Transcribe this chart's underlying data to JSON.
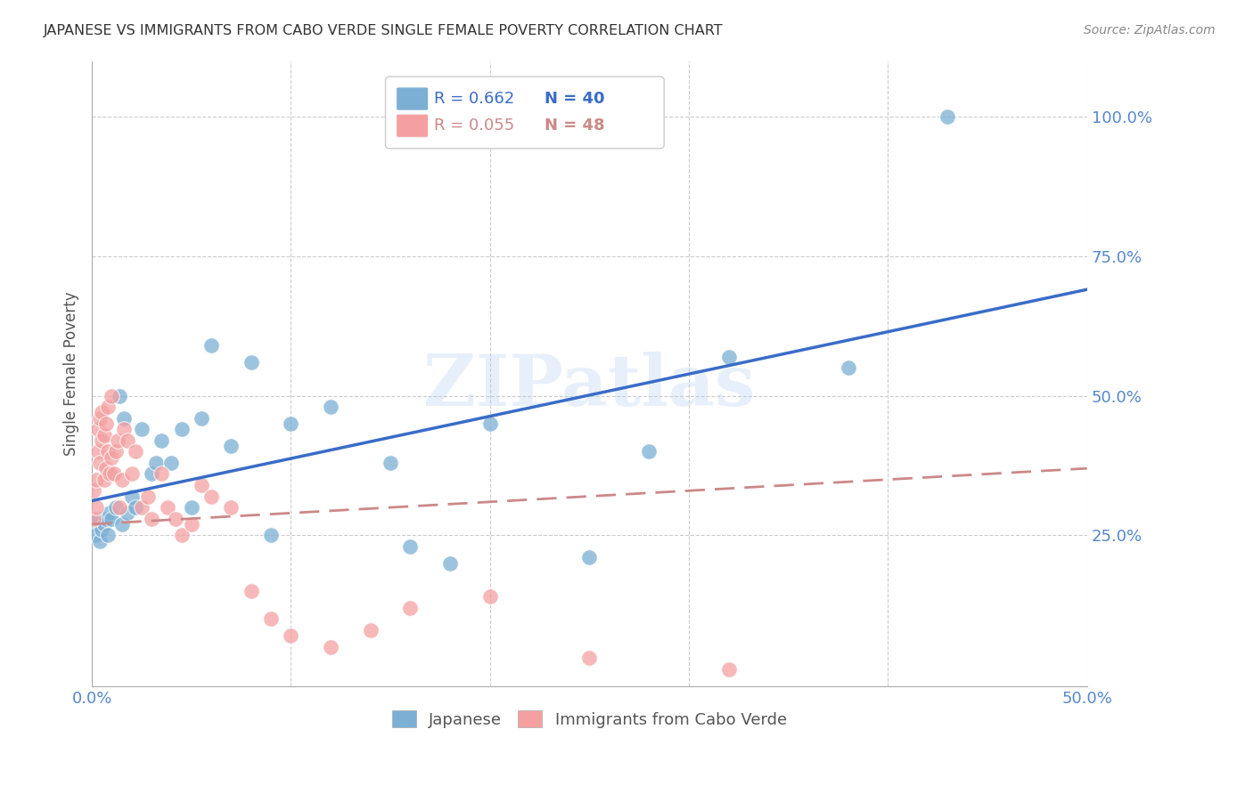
{
  "title": "JAPANESE VS IMMIGRANTS FROM CABO VERDE SINGLE FEMALE POVERTY CORRELATION CHART",
  "source": "Source: ZipAtlas.com",
  "ylabel": "Single Female Poverty",
  "xlim": [
    0.0,
    0.5
  ],
  "ylim": [
    -0.02,
    1.1
  ],
  "watermark": "ZIPatlas",
  "blue_color": "#7BAFD4",
  "pink_color": "#F4A0A0",
  "blue_line_color": "#3A6CC8",
  "pink_line_color": "#CC8888",
  "grid_color": "#CCCCCC",
  "title_color": "#333333",
  "tick_color": "#5588CC",
  "japanese_x": [
    0.001,
    0.002,
    0.003,
    0.004,
    0.005,
    0.006,
    0.007,
    0.008,
    0.009,
    0.01,
    0.012,
    0.014,
    0.015,
    0.016,
    0.018,
    0.02,
    0.022,
    0.025,
    0.03,
    0.032,
    0.035,
    0.04,
    0.045,
    0.05,
    0.055,
    0.06,
    0.07,
    0.08,
    0.09,
    0.1,
    0.12,
    0.15,
    0.16,
    0.18,
    0.2,
    0.25,
    0.28,
    0.32,
    0.38,
    0.43
  ],
  "japanese_y": [
    0.27,
    0.25,
    0.28,
    0.24,
    0.26,
    0.27,
    0.28,
    0.25,
    0.29,
    0.28,
    0.3,
    0.5,
    0.27,
    0.46,
    0.29,
    0.32,
    0.3,
    0.44,
    0.36,
    0.38,
    0.42,
    0.38,
    0.44,
    0.3,
    0.46,
    0.59,
    0.41,
    0.56,
    0.25,
    0.45,
    0.48,
    0.38,
    0.23,
    0.2,
    0.45,
    0.21,
    0.4,
    0.57,
    0.55,
    1.0
  ],
  "caboverde_x": [
    0.001,
    0.001,
    0.002,
    0.002,
    0.003,
    0.003,
    0.004,
    0.004,
    0.005,
    0.005,
    0.006,
    0.006,
    0.007,
    0.007,
    0.008,
    0.008,
    0.009,
    0.01,
    0.01,
    0.011,
    0.012,
    0.013,
    0.014,
    0.015,
    0.016,
    0.018,
    0.02,
    0.022,
    0.025,
    0.028,
    0.03,
    0.035,
    0.038,
    0.042,
    0.045,
    0.05,
    0.055,
    0.06,
    0.07,
    0.08,
    0.09,
    0.1,
    0.12,
    0.14,
    0.16,
    0.2,
    0.25,
    0.32
  ],
  "caboverde_y": [
    0.28,
    0.33,
    0.3,
    0.35,
    0.4,
    0.44,
    0.38,
    0.46,
    0.42,
    0.47,
    0.35,
    0.43,
    0.37,
    0.45,
    0.4,
    0.48,
    0.36,
    0.39,
    0.5,
    0.36,
    0.4,
    0.42,
    0.3,
    0.35,
    0.44,
    0.42,
    0.36,
    0.4,
    0.3,
    0.32,
    0.28,
    0.36,
    0.3,
    0.28,
    0.25,
    0.27,
    0.34,
    0.32,
    0.3,
    0.15,
    0.1,
    0.07,
    0.05,
    0.08,
    0.12,
    0.14,
    0.03,
    0.01
  ]
}
